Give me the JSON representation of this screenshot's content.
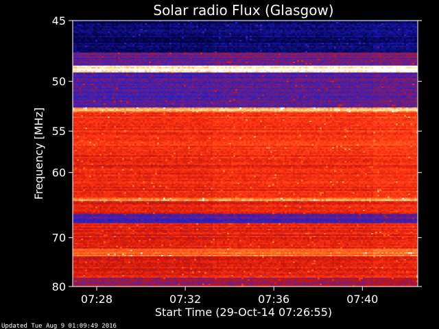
{
  "chart_data": {
    "type": "heatmap",
    "title": "Solar radio Flux (Glasgow)",
    "xlabel": "Start Time (29-Oct-14 07:26:55)",
    "ylabel": "Frequency [MHz]",
    "x_start": "07:26:55",
    "xlim": [
      "07:26:55",
      "07:42:30"
    ],
    "x_ticks": [
      "07:28",
      "07:32",
      "07:36",
      "07:40"
    ],
    "ylim": [
      45,
      80
    ],
    "y_ticks": [
      45,
      50,
      55,
      60,
      70,
      80
    ],
    "y_scale": "reciprocal",
    "colormap": "red-temperature",
    "colors": {
      "low": "#000050",
      "mid_low": "#3030d0",
      "mid": "#dc1800",
      "mid_high": "#ff5020",
      "high": "#ffffff"
    },
    "frequency_bands": [
      {
        "freq_min": 45,
        "freq_max": 47.5,
        "level": 0.05
      },
      {
        "freq_min": 47.5,
        "freq_max": 48.6,
        "level": 0.35
      },
      {
        "freq_min": 48.6,
        "freq_max": 49.2,
        "level": 0.98
      },
      {
        "freq_min": 49.2,
        "freq_max": 52.5,
        "level": 0.3
      },
      {
        "freq_min": 52.5,
        "freq_max": 53.0,
        "level": 0.85
      },
      {
        "freq_min": 53.0,
        "freq_max": 57.0,
        "level": 0.62
      },
      {
        "freq_min": 57.0,
        "freq_max": 63.5,
        "level": 0.58
      },
      {
        "freq_min": 63.5,
        "freq_max": 64.0,
        "level": 0.8
      },
      {
        "freq_min": 64.0,
        "freq_max": 66.0,
        "level": 0.55
      },
      {
        "freq_min": 66.0,
        "freq_max": 67.5,
        "level": 0.3
      },
      {
        "freq_min": 67.5,
        "freq_max": 72.0,
        "level": 0.55
      },
      {
        "freq_min": 72.0,
        "freq_max": 73.5,
        "level": 0.75
      },
      {
        "freq_min": 73.5,
        "freq_max": 78.0,
        "level": 0.55
      },
      {
        "freq_min": 78.0,
        "freq_max": 80.0,
        "level": 0.45
      }
    ]
  },
  "footer": {
    "updated": "Updated Tue Aug  9 01:09:49 2016"
  }
}
